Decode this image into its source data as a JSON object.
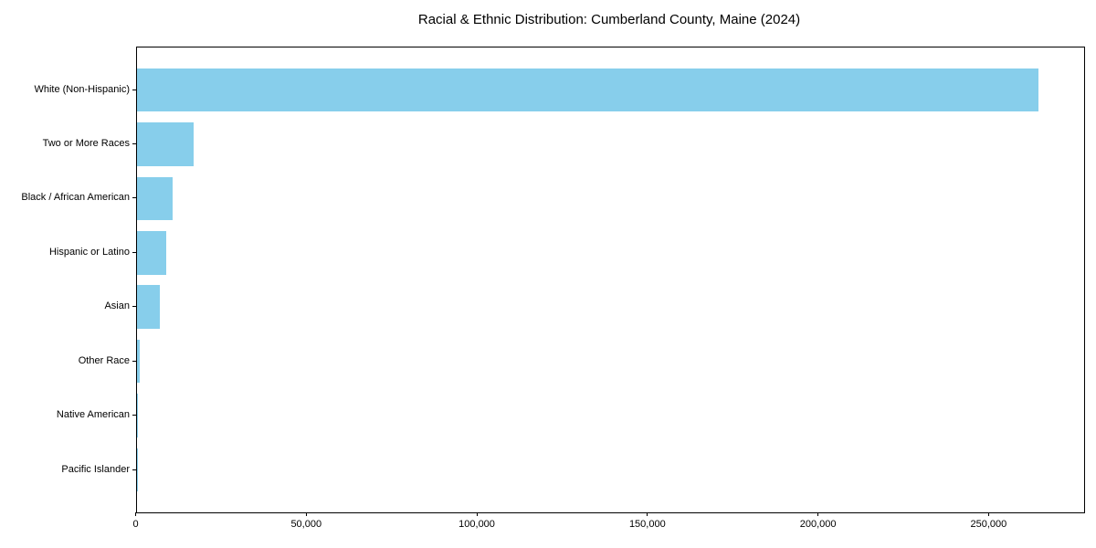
{
  "chart_data": {
    "type": "bar",
    "orientation": "horizontal",
    "title": "Racial & Ethnic Distribution: Cumberland County, Maine (2024)",
    "categories": [
      "White (Non-Hispanic)",
      "Two or More Races",
      "Black / African American",
      "Hispanic or Latino",
      "Asian",
      "Other Race",
      "Native American",
      "Pacific Islander"
    ],
    "values": [
      264400,
      16800,
      10600,
      8600,
      6800,
      1000,
      350,
      100
    ],
    "xlabel": "",
    "ylabel": "",
    "xlim": [
      0,
      277600
    ],
    "x_ticks": [
      0,
      50000,
      100000,
      150000,
      200000,
      250000
    ],
    "x_tick_labels": [
      "0",
      "50,000",
      "100,000",
      "150,000",
      "200,000",
      "250,000"
    ],
    "bar_color": "#87CEEB",
    "text_color": "#000000",
    "background_color": "#FFFFFF",
    "grid": false,
    "legend": null
  }
}
